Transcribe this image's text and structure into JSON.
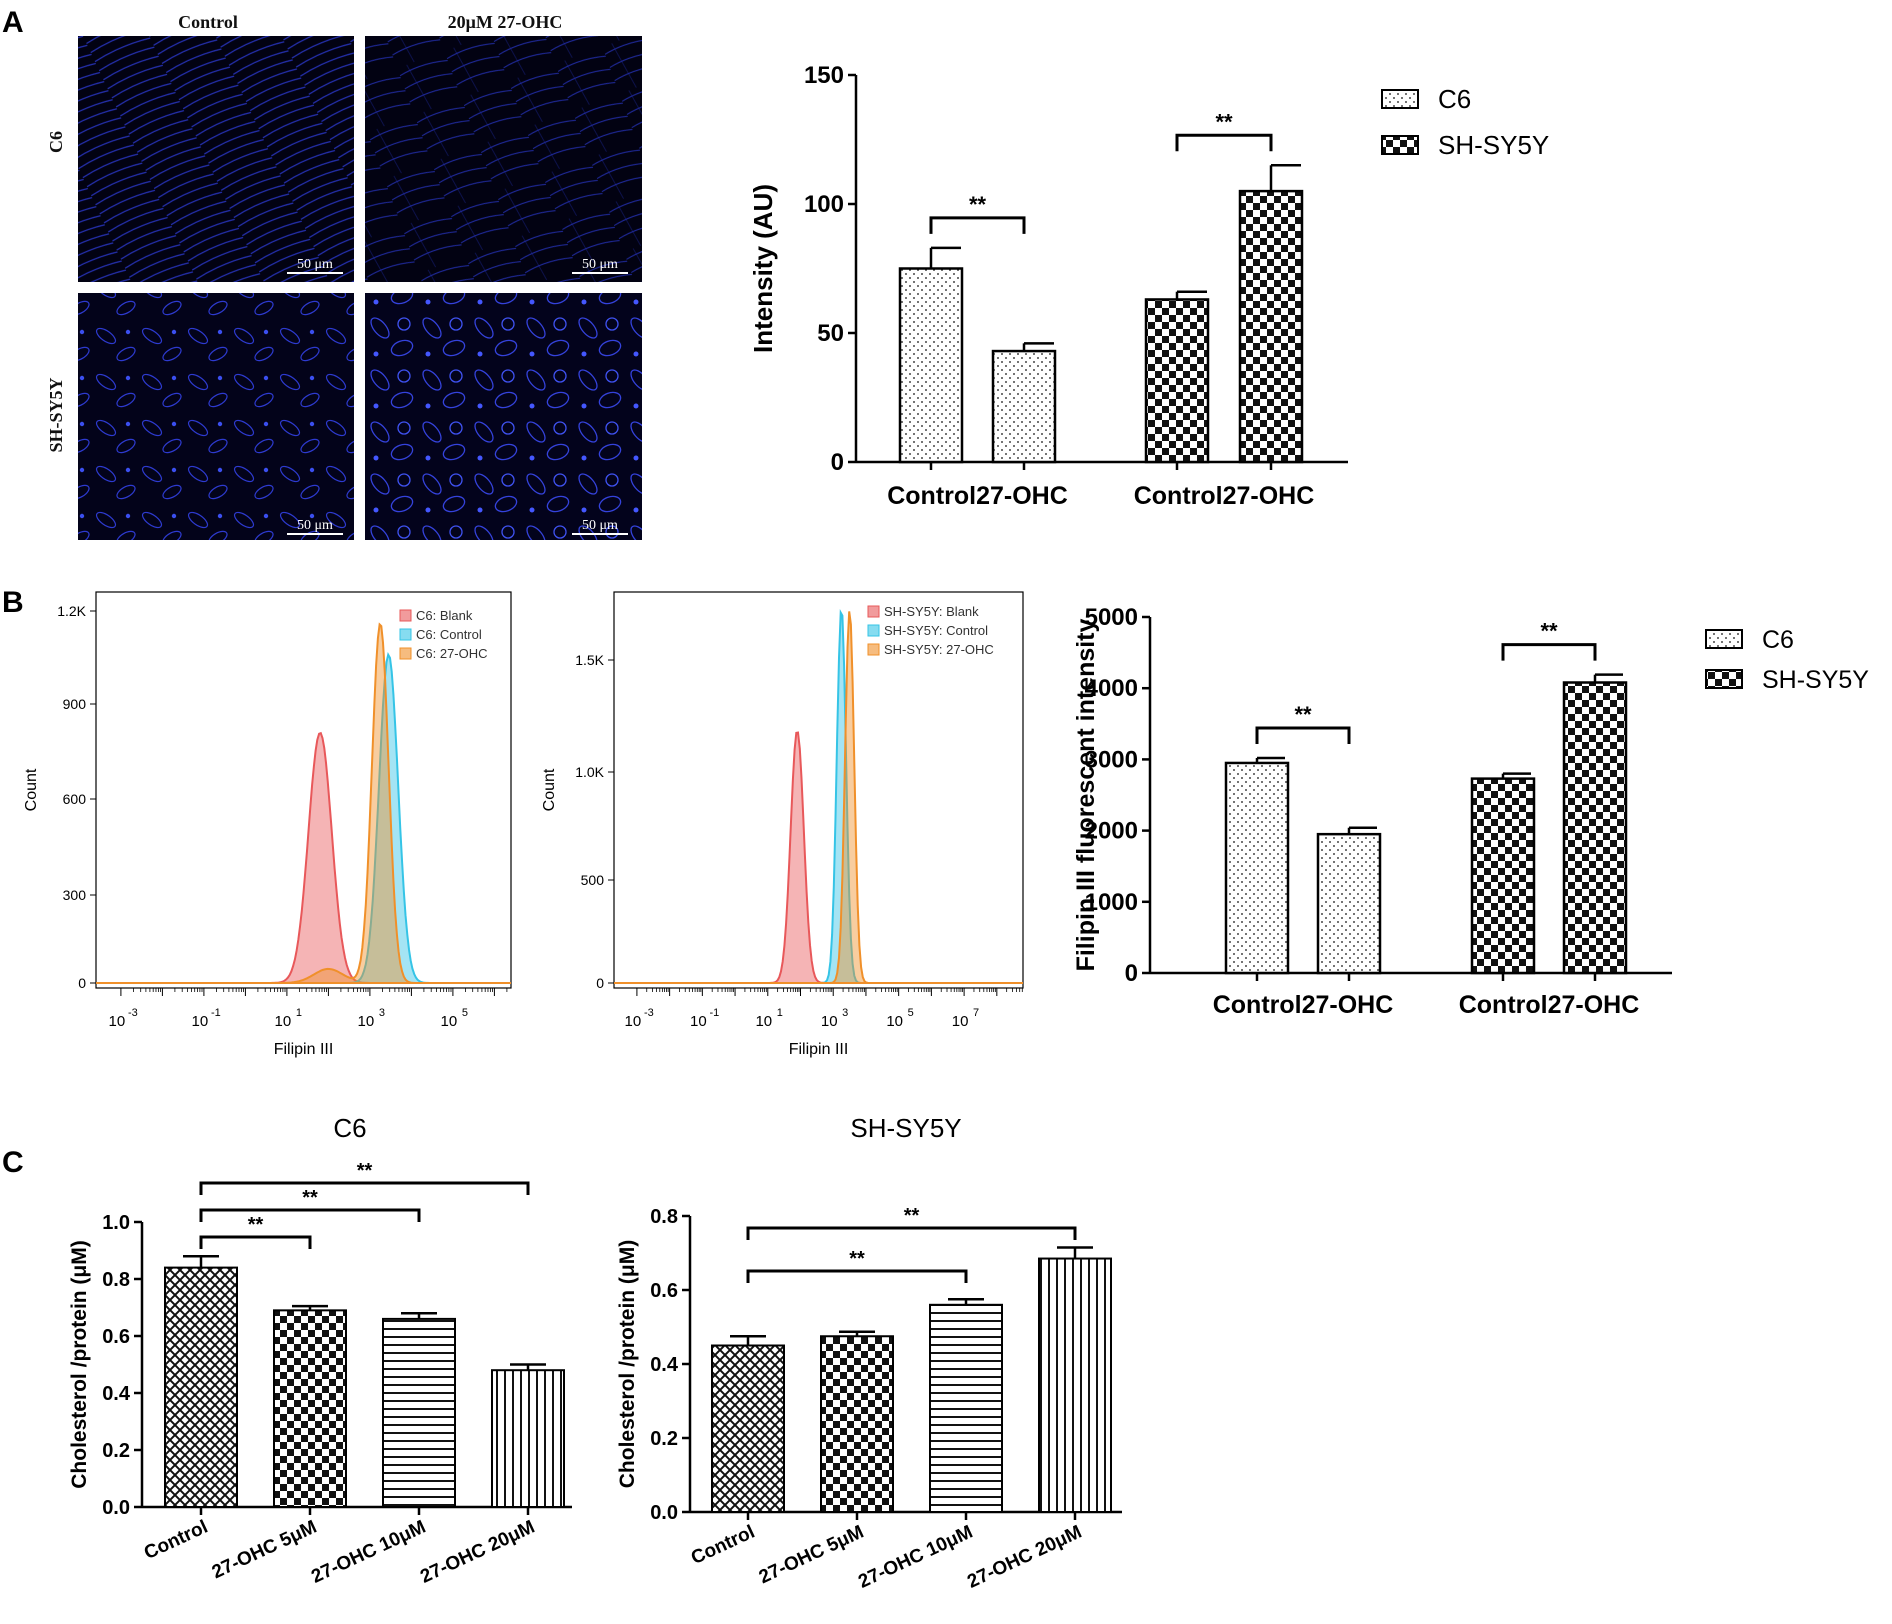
{
  "panel_labels": {
    "a": "A",
    "b": "B",
    "c": "C"
  },
  "panel_a": {
    "micrographs": {
      "col_headers": [
        "Control",
        "20μM 27-OHC"
      ],
      "row_labels": [
        "C6",
        "SH-SY5Y"
      ],
      "scalebar": "50 μm"
    }
  },
  "chart_data": [
    {
      "id": "a_bar",
      "type": "bar",
      "title": "",
      "ylabel": "Intensity (AU)",
      "xlabel": "",
      "ylim": [
        0,
        150
      ],
      "yticks": [
        0,
        50,
        100,
        150
      ],
      "groups": [
        {
          "name": "C6",
          "categories": [
            "Control",
            "27-OHC"
          ],
          "values": [
            75,
            43
          ],
          "errors": [
            8,
            3
          ]
        },
        {
          "name": "SH-SY5Y",
          "categories": [
            "Control",
            "27-OHC"
          ],
          "values": [
            63,
            105
          ],
          "errors": [
            3,
            10
          ]
        }
      ],
      "legend": [
        "C6",
        "SH-SY5Y"
      ],
      "legend_position": "top-right",
      "significance": [
        "**",
        "**"
      ]
    },
    {
      "id": "b_hist_c6",
      "type": "area",
      "xlabel": "Filipin III",
      "ylabel": "Count",
      "yticks": [
        "0",
        "300",
        "600",
        "900",
        "1.2K"
      ],
      "ylim": [
        0,
        1250
      ],
      "xticks": [
        "-3",
        "-1",
        "1",
        "3",
        "5"
      ],
      "xscale": "log",
      "series": [
        {
          "name": "C6: Blank",
          "color": "#e8585a",
          "peak_log10": 1.8,
          "peak_count": 800
        },
        {
          "name": "C6: Control",
          "color": "#35c4e6",
          "peak_log10": 3.45,
          "peak_count": 1050
        },
        {
          "name": "C6: 27-OHC",
          "color": "#f0902a",
          "peak_log10": 3.25,
          "peak_count": 1150
        }
      ]
    },
    {
      "id": "b_hist_sh",
      "type": "area",
      "xlabel": "Filipin III",
      "ylabel": "Count",
      "yticks": [
        "0",
        "500",
        "1.0K",
        "1.5K"
      ],
      "ylim": [
        0,
        1750
      ],
      "xticks": [
        "-3",
        "-1",
        "1",
        "3",
        "5",
        "7"
      ],
      "xscale": "log",
      "series": [
        {
          "name": "SH-SY5Y: Blank",
          "color": "#e8585a",
          "peak_log10": 1.9,
          "peak_count": 1130
        },
        {
          "name": "SH-SY5Y: Control",
          "color": "#35c4e6",
          "peak_log10": 3.25,
          "peak_count": 1680
        },
        {
          "name": "SH-SY5Y: 27-OHC",
          "color": "#f0902a",
          "peak_log10": 3.5,
          "peak_count": 1670
        }
      ]
    },
    {
      "id": "b_bar",
      "type": "bar",
      "ylabel": "Filipin III fluorescent intensity",
      "ylim": [
        0,
        5000
      ],
      "yticks": [
        0,
        1000,
        2000,
        3000,
        4000,
        5000
      ],
      "groups": [
        {
          "name": "C6",
          "categories": [
            "Control",
            "27-OHC"
          ],
          "values": [
            2950,
            1950
          ],
          "errors": [
            70,
            90
          ]
        },
        {
          "name": "SH-SY5Y",
          "categories": [
            "Control",
            "27-OHC"
          ],
          "values": [
            2730,
            4080
          ],
          "errors": [
            70,
            110
          ]
        }
      ],
      "legend": [
        "C6",
        "SH-SY5Y"
      ],
      "legend_position": "top-right",
      "significance": [
        "**",
        "**"
      ]
    },
    {
      "id": "c_c6",
      "type": "bar",
      "title": "C6",
      "ylabel": "Cholesterol /protein (μM)",
      "ylim": [
        0,
        1.0
      ],
      "yticks": [
        "0.0",
        "0.2",
        "0.4",
        "0.6",
        "0.8",
        "1.0"
      ],
      "categories": [
        "Control",
        "27-OHC 5μM",
        "27-OHC 10μM",
        "27-OHC 20μM"
      ],
      "values": [
        0.84,
        0.69,
        0.66,
        0.48
      ],
      "errors": [
        0.04,
        0.015,
        0.02,
        0.02
      ],
      "significance": [
        "**",
        "**",
        "**"
      ]
    },
    {
      "id": "c_sh",
      "type": "bar",
      "title": "SH-SY5Y",
      "ylabel": "Cholesterol /protein (μM)",
      "ylim": [
        0,
        0.8
      ],
      "yticks": [
        "0.0",
        "0.2",
        "0.4",
        "0.6",
        "0.8"
      ],
      "categories": [
        "Control",
        "27-OHC 5μM",
        "27-OHC 10μM",
        "27-OHC 20μM"
      ],
      "values": [
        0.45,
        0.475,
        0.56,
        0.685
      ],
      "errors": [
        0.025,
        0.012,
        0.015,
        0.03
      ],
      "significance": [
        "**",
        "**"
      ]
    }
  ]
}
